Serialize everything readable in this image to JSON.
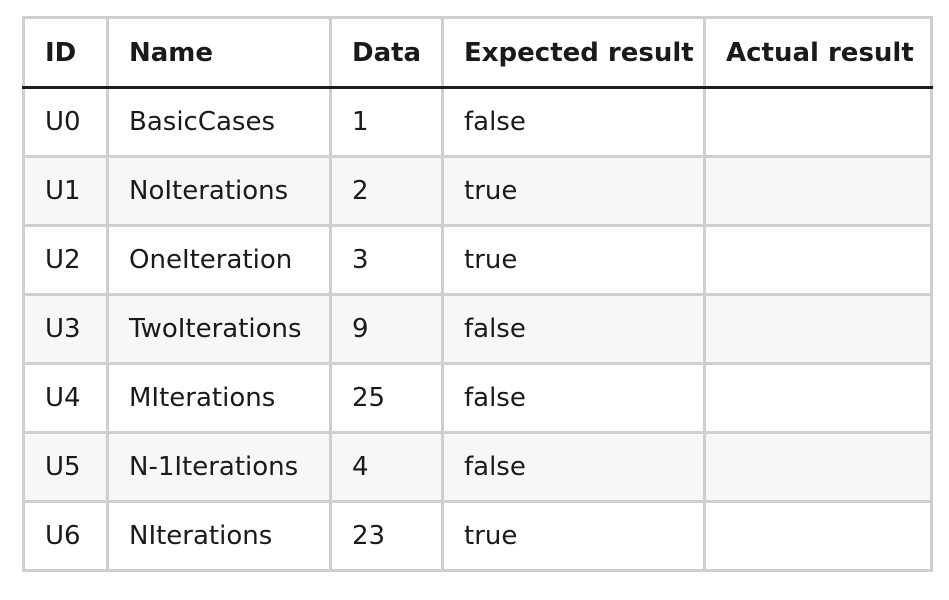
{
  "table": {
    "headers": [
      "ID",
      "Name",
      "Data",
      "Expected result",
      "Actual result"
    ],
    "rows": [
      {
        "id": "U0",
        "name": "BasicCases",
        "data": "1",
        "expected": "false",
        "actual": ""
      },
      {
        "id": "U1",
        "name": "NoIterations",
        "data": "2",
        "expected": "true",
        "actual": ""
      },
      {
        "id": "U2",
        "name": "OneIteration",
        "data": "3",
        "expected": "true",
        "actual": ""
      },
      {
        "id": "U3",
        "name": "TwoIterations",
        "data": "9",
        "expected": "false",
        "actual": ""
      },
      {
        "id": "U4",
        "name": "MIterations",
        "data": "25",
        "expected": "false",
        "actual": ""
      },
      {
        "id": "U5",
        "name": "N-1Iterations",
        "data": "4",
        "expected": "false",
        "actual": ""
      },
      {
        "id": "U6",
        "name": "NIterations",
        "data": "23",
        "expected": "true",
        "actual": ""
      }
    ]
  }
}
